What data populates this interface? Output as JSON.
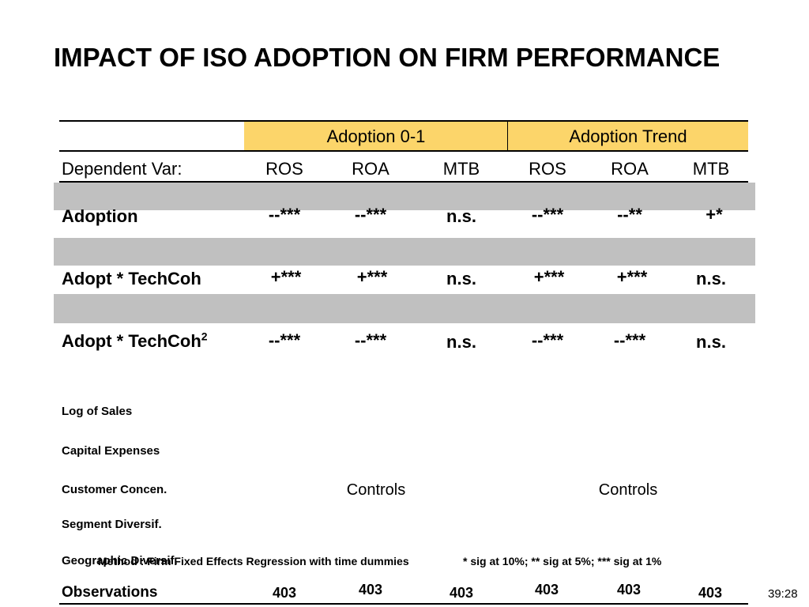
{
  "title": "IMPACT OF ISO ADOPTION ON FIRM PERFORMANCE",
  "groups": [
    "Adoption 0-1",
    "Adoption Trend"
  ],
  "dependent_label": "Dependent Var:",
  "columns": [
    "ROS",
    "ROA",
    "MTB",
    "ROS",
    "ROA",
    "MTB"
  ],
  "rows": [
    {
      "label": "Adoption",
      "sup": "",
      "values": [
        "--***",
        "--***",
        "n.s.",
        "--***",
        "--**",
        "+*"
      ]
    },
    {
      "label": "Adopt * TechCoh",
      "sup": "",
      "values": [
        "+***",
        "+***",
        "n.s.",
        "+***",
        "+***",
        "n.s."
      ]
    },
    {
      "label": "Adopt * TechCoh",
      "sup": "2",
      "values": [
        "--***",
        "--***",
        "n.s.",
        "--***",
        "--***",
        "n.s."
      ]
    }
  ],
  "controls": {
    "items": [
      "Log of Sales",
      "Capital Expenses",
      "Customer Concen.",
      "Segment Diversif.",
      "Geographic Diversif."
    ],
    "label_left": "Controls",
    "label_right": "Controls"
  },
  "method_note": "Method : Firm Fixed Effects Regression with time dummies",
  "sig_note": "* sig at 10%; ** sig at 5%; *** sig at 1%",
  "observations": {
    "label": "Observations",
    "values": [
      "403",
      "403",
      "403",
      "403",
      "403",
      "403"
    ]
  },
  "slide_number": "39:28",
  "colors": {
    "header_fill": "#fcd56a",
    "band_fill": "#c0c0c0"
  }
}
